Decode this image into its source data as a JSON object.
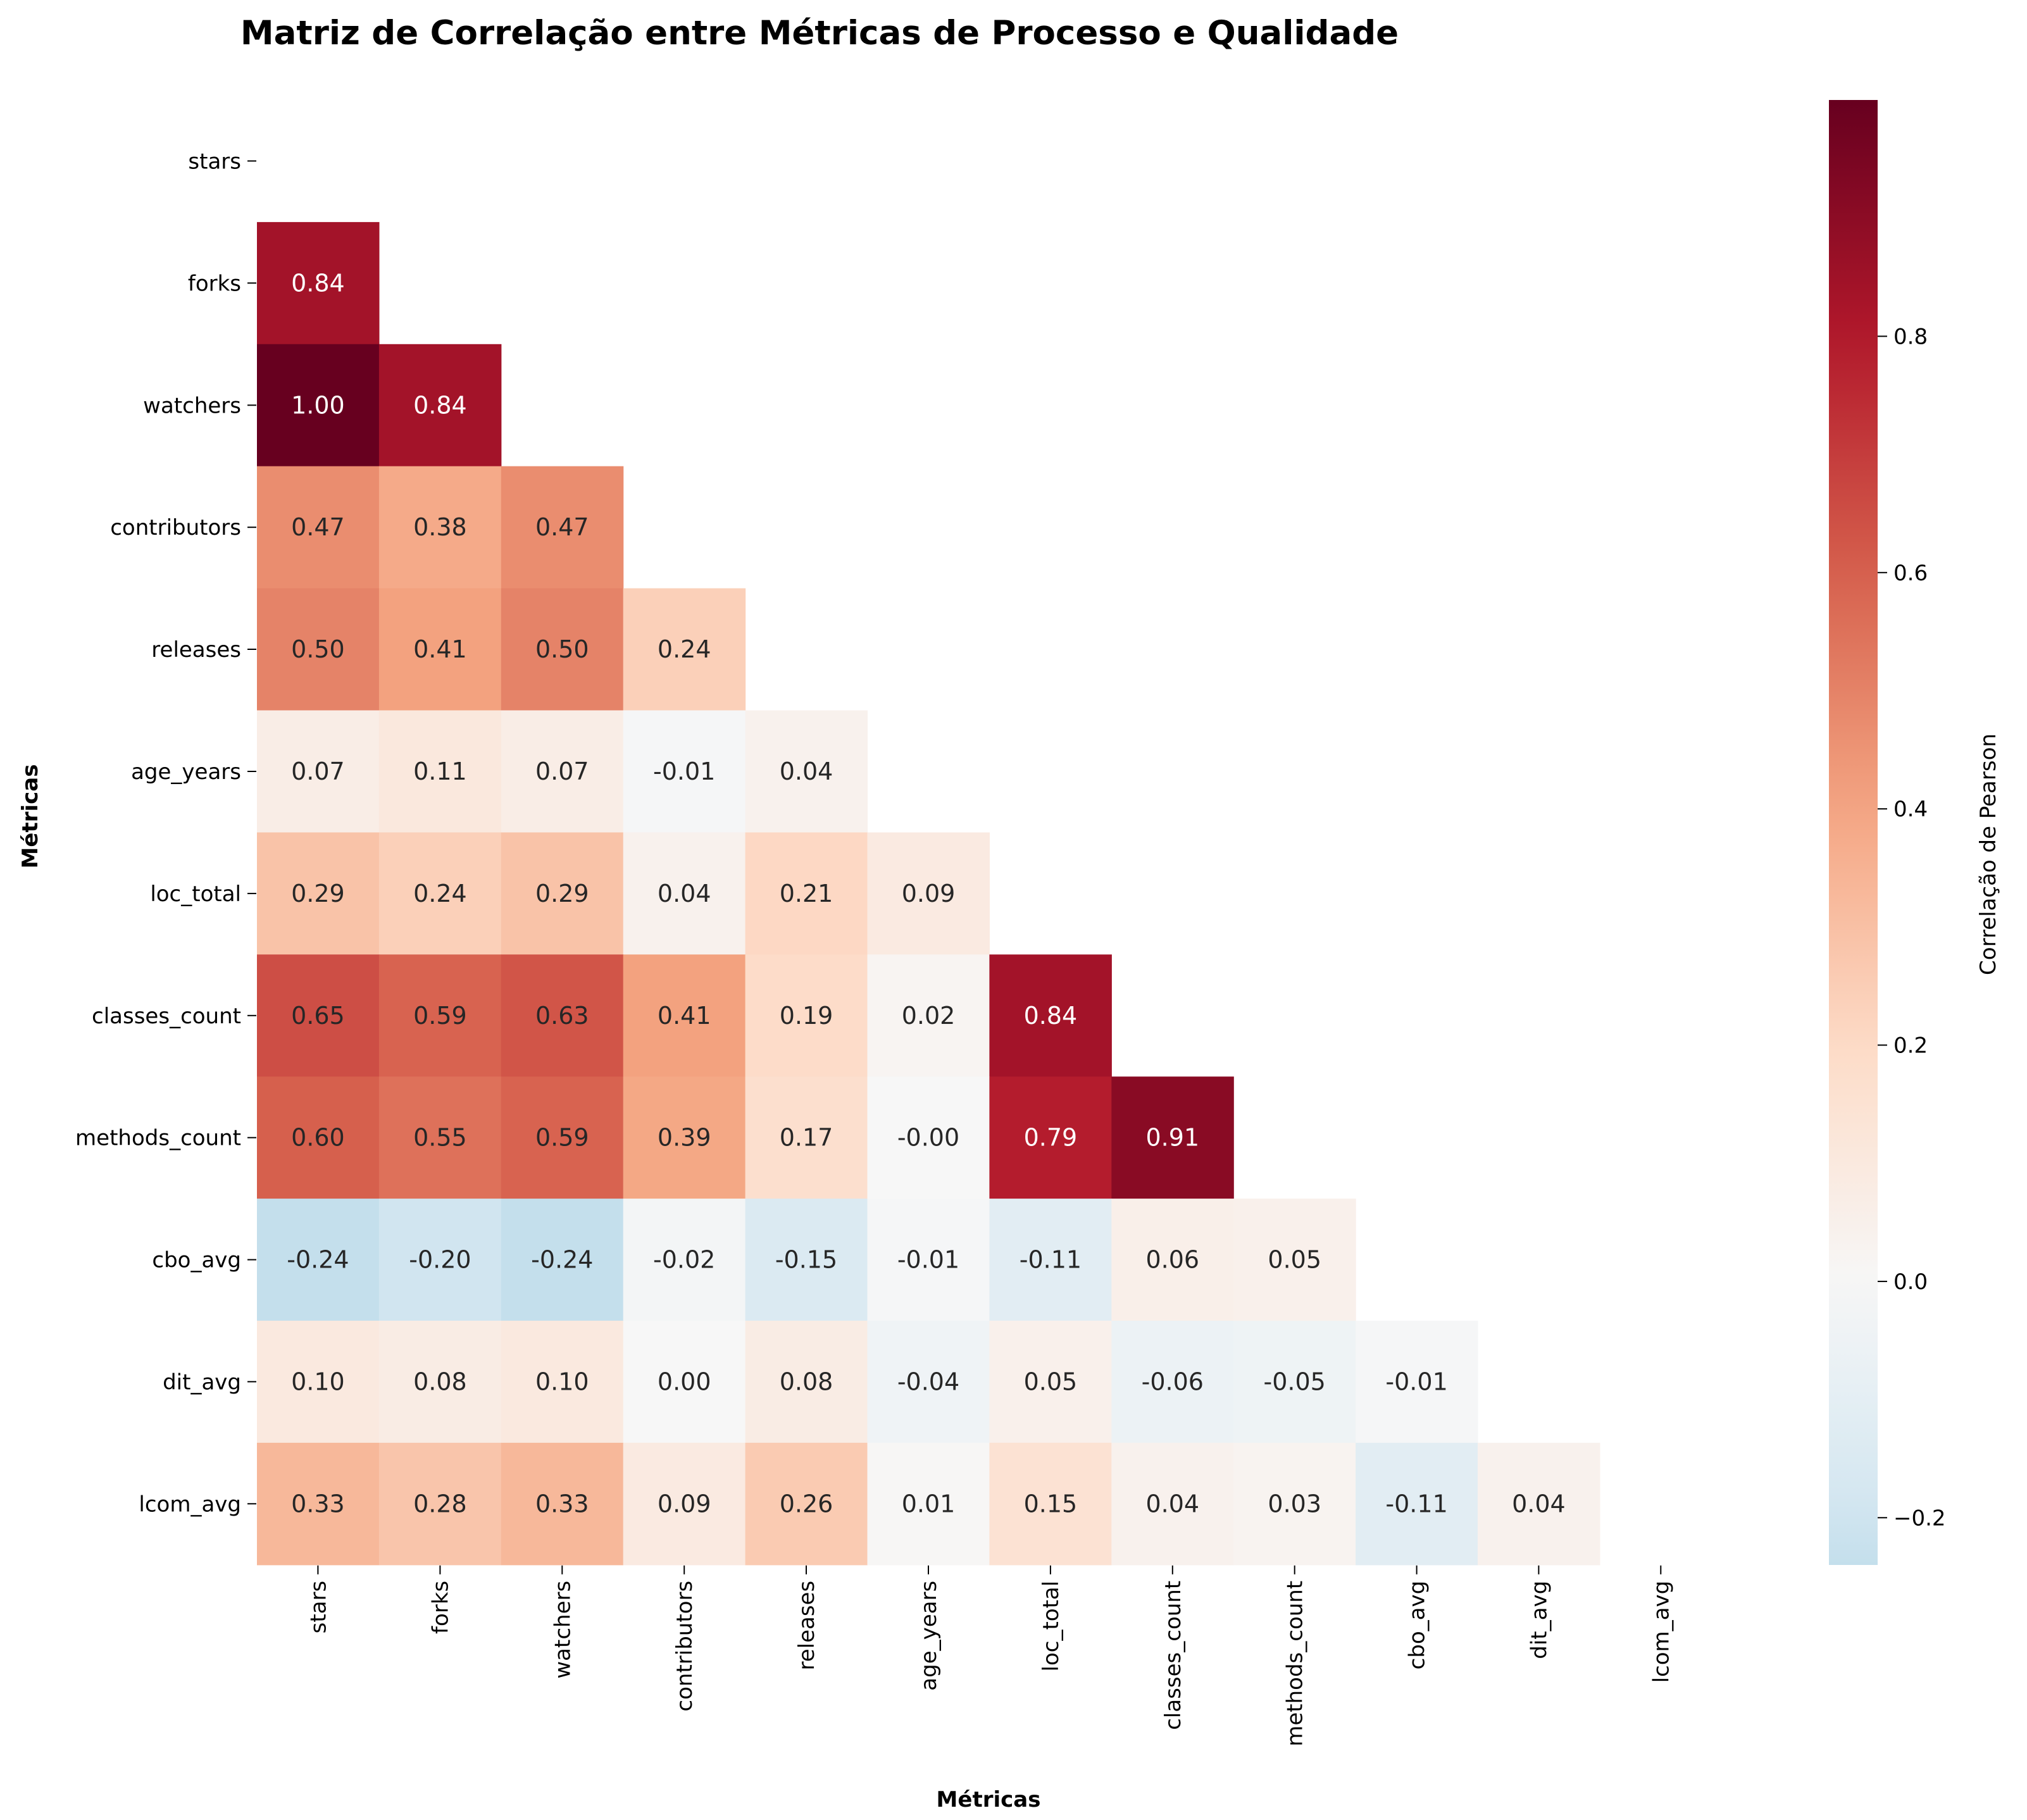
{
  "chart_data": {
    "type": "heatmap",
    "title": "Matriz de Correlação entre Métricas de Processo e Qualidade",
    "xlabel": "Métricas",
    "ylabel": "Métricas",
    "colorbar_label": "Correlação de Pearson",
    "colormap": "RdBu_r",
    "value_range": [
      -0.24,
      1.0
    ],
    "center": 0,
    "mask": "upper triangle including diagonal",
    "colorbar_ticks": [
      "−0.2",
      "0.0",
      "0.2",
      "0.4",
      "0.6",
      "0.8"
    ],
    "colorbar_tick_values": [
      -0.2,
      0.0,
      0.2,
      0.4,
      0.6,
      0.8
    ],
    "labels": [
      "stars",
      "forks",
      "watchers",
      "contributors",
      "releases",
      "age_years",
      "loc_total",
      "classes_count",
      "methods_count",
      "cbo_avg",
      "dit_avg",
      "lcom_avg"
    ],
    "matrix": [
      [],
      [
        0.84
      ],
      [
        1.0,
        0.84
      ],
      [
        0.47,
        0.38,
        0.47
      ],
      [
        0.5,
        0.41,
        0.5,
        0.24
      ],
      [
        0.07,
        0.11,
        0.07,
        -0.01,
        0.04
      ],
      [
        0.29,
        0.24,
        0.29,
        0.04,
        0.21,
        0.09
      ],
      [
        0.65,
        0.59,
        0.63,
        0.41,
        0.19,
        0.02,
        0.84
      ],
      [
        0.6,
        0.55,
        0.59,
        0.39,
        0.17,
        -0.0,
        0.79,
        0.91
      ],
      [
        -0.24,
        -0.2,
        -0.24,
        -0.02,
        -0.15,
        -0.01,
        -0.11,
        0.06,
        0.05
      ],
      [
        0.1,
        0.08,
        0.1,
        0.0,
        0.08,
        -0.04,
        0.05,
        -0.06,
        -0.05,
        -0.01
      ],
      [
        0.33,
        0.28,
        0.33,
        0.09,
        0.26,
        0.01,
        0.15,
        0.04,
        0.03,
        -0.11,
        0.04
      ]
    ],
    "cell_labels": [
      [],
      [
        "0.84"
      ],
      [
        "1.00",
        "0.84"
      ],
      [
        "0.47",
        "0.38",
        "0.47"
      ],
      [
        "0.50",
        "0.41",
        "0.50",
        "0.24"
      ],
      [
        "0.07",
        "0.11",
        "0.07",
        "-0.01",
        "0.04"
      ],
      [
        "0.29",
        "0.24",
        "0.29",
        "0.04",
        "0.21",
        "0.09"
      ],
      [
        "0.65",
        "0.59",
        "0.63",
        "0.41",
        "0.19",
        "0.02",
        "0.84"
      ],
      [
        "0.60",
        "0.55",
        "0.59",
        "0.39",
        "0.17",
        "-0.00",
        "0.79",
        "0.91"
      ],
      [
        "-0.24",
        "-0.20",
        "-0.24",
        "-0.02",
        "-0.15",
        "-0.01",
        "-0.11",
        "0.06",
        "0.05"
      ],
      [
        "0.10",
        "0.08",
        "0.10",
        "0.00",
        "0.08",
        "-0.04",
        "0.05",
        "-0.06",
        "-0.05",
        "-0.01"
      ],
      [
        "0.33",
        "0.28",
        "0.33",
        "0.09",
        "0.26",
        "0.01",
        "0.15",
        "0.04",
        "0.03",
        "-0.11",
        "0.04"
      ]
    ]
  }
}
